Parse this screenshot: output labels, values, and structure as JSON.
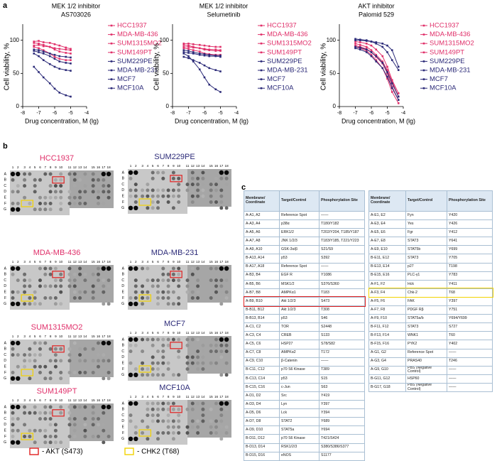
{
  "panel_labels": [
    "a",
    "b",
    "c"
  ],
  "chart_data": [
    {
      "type": "line",
      "title": "MEK 1/2 inhibitor",
      "subtitle": "AS703026",
      "x_label": "Drug concentration, M (lg)",
      "y_label": "Cell viability, %",
      "x": [
        -7.3,
        -7,
        -6.7,
        -6.3,
        -6,
        -5.7,
        -5.3,
        -5
      ],
      "xlim": [
        -8,
        -4
      ],
      "xticks": [
        -8,
        -7,
        -6,
        -5,
        -4
      ],
      "ylim": [
        0,
        120
      ],
      "yticks": [
        0,
        50,
        100
      ],
      "series": [
        {
          "name": "HCC1937",
          "color": "#e0306a",
          "values": [
            98,
            99,
            97,
            96,
            94,
            92,
            89,
            87
          ]
        },
        {
          "name": "MDA-MB-436",
          "color": "#e0306a",
          "values": [
            96,
            95,
            93,
            90,
            86,
            83,
            81,
            80
          ]
        },
        {
          "name": "SUM1315MO2",
          "color": "#e0306a",
          "values": [
            92,
            93,
            91,
            90,
            88,
            87,
            86,
            85
          ]
        },
        {
          "name": "SUM149PT",
          "color": "#e0306a",
          "values": [
            90,
            88,
            85,
            80,
            75,
            72,
            70,
            70
          ]
        },
        {
          "name": "SUM229PE",
          "color": "#2b2a78",
          "values": [
            84,
            82,
            80,
            76,
            72,
            68,
            66,
            65
          ]
        },
        {
          "name": "MDA-MB-231",
          "color": "#2b2a78",
          "values": [
            86,
            85,
            83,
            80,
            78,
            76,
            75,
            74
          ]
        },
        {
          "name": "MCF7",
          "color": "#2b2a78",
          "values": [
            80,
            76,
            70,
            64,
            60,
            57,
            55,
            54
          ]
        },
        {
          "name": "MCF10A",
          "color": "#2b2a78",
          "values": [
            60,
            52,
            44,
            35,
            27,
            21,
            17,
            15
          ]
        }
      ]
    },
    {
      "type": "line",
      "title": "MEK 1/2 inhibitor",
      "subtitle": "Selumetinib",
      "x_label": "Drug concentration, M (lg)",
      "y_label": "Cell viability, %",
      "x": [
        -7.3,
        -7,
        -6.7,
        -6.3,
        -6,
        -5.7,
        -5.3,
        -5
      ],
      "xlim": [
        -8,
        -4
      ],
      "xticks": [
        -8,
        -7,
        -6,
        -5,
        -4
      ],
      "ylim": [
        0,
        120
      ],
      "yticks": [
        0,
        50,
        100
      ],
      "series": [
        {
          "name": "HCC1937",
          "color": "#e0306a",
          "values": [
            95,
            95,
            94,
            93,
            92,
            91,
            90,
            90
          ]
        },
        {
          "name": "MDA-MB-436",
          "color": "#e0306a",
          "values": [
            93,
            92,
            90,
            88,
            86,
            85,
            84,
            84
          ]
        },
        {
          "name": "SUM1315MO2",
          "color": "#e0306a",
          "values": [
            90,
            90,
            89,
            88,
            87,
            86,
            86,
            85
          ]
        },
        {
          "name": "SUM149PT",
          "color": "#e0306a",
          "values": [
            88,
            87,
            85,
            83,
            80,
            79,
            78,
            78
          ]
        },
        {
          "name": "SUM229PE",
          "color": "#2b2a78",
          "values": [
            82,
            81,
            80,
            78,
            77,
            76,
            76,
            75
          ]
        },
        {
          "name": "MDA-MB-231",
          "color": "#2b2a78",
          "values": [
            85,
            84,
            82,
            80,
            79,
            78,
            77,
            77
          ]
        },
        {
          "name": "MCF7",
          "color": "#2b2a78",
          "values": [
            75,
            73,
            70,
            66,
            62,
            58,
            55,
            53
          ]
        },
        {
          "name": "MCF10A",
          "color": "#2b2a78",
          "values": [
            80,
            76,
            68,
            56,
            44,
            33,
            26,
            22
          ]
        }
      ]
    },
    {
      "type": "line",
      "title": "AKT inhibitor",
      "subtitle": "Palomid 529",
      "x_label": "Drug concentration, M (lg)",
      "y_label": "Cell viability, %",
      "x": [
        -7,
        -6.7,
        -6.3,
        -6,
        -5.7,
        -5.3,
        -5,
        -4.7,
        -4.3
      ],
      "xlim": [
        -8,
        -4
      ],
      "xticks": [
        -8,
        -7,
        -6,
        -5,
        -4
      ],
      "ylim": [
        0,
        120
      ],
      "yticks": [
        0,
        50,
        100
      ],
      "series": [
        {
          "name": "HCC1937",
          "color": "#e0306a",
          "values": [
            95,
            93,
            90,
            85,
            78,
            68,
            55,
            38,
            15
          ]
        },
        {
          "name": "MDA-MB-436",
          "color": "#e0306a",
          "values": [
            92,
            90,
            87,
            82,
            75,
            65,
            50,
            30,
            10
          ]
        },
        {
          "name": "SUM1315MO2",
          "color": "#e0306a",
          "values": [
            98,
            97,
            95,
            92,
            86,
            76,
            60,
            40,
            20
          ]
        },
        {
          "name": "SUM149PT",
          "color": "#e0306a",
          "values": [
            90,
            88,
            84,
            78,
            70,
            58,
            42,
            22,
            5
          ]
        },
        {
          "name": "SUM229PE",
          "color": "#2b2a78",
          "values": [
            100,
            100,
            99,
            98,
            97,
            95,
            92,
            85,
            60
          ]
        },
        {
          "name": "MDA-MB-231",
          "color": "#2b2a78",
          "values": [
            102,
            101,
            100,
            98,
            95,
            90,
            82,
            70,
            55
          ]
        },
        {
          "name": "MCF7",
          "color": "#2b2a78",
          "values": [
            88,
            86,
            82,
            76,
            68,
            58,
            45,
            28,
            10
          ]
        },
        {
          "name": "MCF10A",
          "color": "#2b2a78",
          "values": [
            90,
            89,
            86,
            82,
            76,
            66,
            52,
            35,
            15
          ]
        }
      ]
    }
  ],
  "blots": {
    "columns": [
      "1",
      "2",
      "3",
      "4",
      "5",
      "6",
      "7",
      "8",
      "9",
      "10",
      "11",
      "12",
      "13",
      "14",
      "15",
      "16",
      "17",
      "18"
    ],
    "rows": [
      "A",
      "B",
      "C",
      "D",
      "E",
      "F",
      "G"
    ],
    "cells": [
      {
        "name": "HCC1937",
        "color": "#e0306a"
      },
      {
        "name": "SUM229PE",
        "color": "#2b2a78"
      },
      {
        "name": "MDA-MB-436",
        "color": "#e0306a"
      },
      {
        "name": "MDA-MB-231",
        "color": "#2b2a78"
      },
      {
        "name": "SUM1315MO2",
        "color": "#e0306a"
      },
      {
        "name": "MCF7",
        "color": "#2b2a78"
      },
      {
        "name": "SUM149PT",
        "color": "#e0306a"
      },
      {
        "name": "MCF10A",
        "color": "#2b2a78"
      }
    ],
    "legend": [
      {
        "label": "- AKT (S473)",
        "color": "#e02020"
      },
      {
        "label": "- CHK2 (T68)",
        "color": "#f2d200"
      }
    ]
  },
  "tables": [
    {
      "header": [
        "Membrane/ Coordinate",
        "Target/Control",
        "Phosphorylation Site"
      ],
      "highlight_row": 10,
      "highlight_color": "#e02020",
      "rows": [
        [
          "A-A1, A2",
          "Reference Spot",
          "——"
        ],
        [
          "A-A3, A4",
          "p38α",
          "T180/Y182"
        ],
        [
          "A-A5, A6",
          "ERK1/2",
          "T202/Y204, T185/Y187"
        ],
        [
          "A-A7, A8",
          "JNK 1/2/3",
          "T183/Y185, T221/Y223"
        ],
        [
          "A-A9, A10",
          "GSK-3α/β",
          "S21/S9"
        ],
        [
          "B-A13, A14",
          "p53",
          "S392"
        ],
        [
          "B-A17, A18",
          "Reference Spot",
          "——"
        ],
        [
          "A-B3, B4",
          "EGF R",
          "Y1086"
        ],
        [
          "A-B5, B6",
          "MSK1/2",
          "S376/S360"
        ],
        [
          "A-B7, B8",
          "AMPKα1",
          "T183"
        ],
        [
          "A-B9, B10",
          "Akt 1/2/3",
          "S473"
        ],
        [
          "B-B11, B12",
          "Akt 1/2/3",
          "T308"
        ],
        [
          "B-B13, B14",
          "p53",
          "S46"
        ],
        [
          "A-C1, C2",
          "TOR",
          "S2448"
        ],
        [
          "A-C3, C4",
          "CREB",
          "S133"
        ],
        [
          "A-C5, C6",
          "HSP27",
          "S78/S82"
        ],
        [
          "A-C7, C8",
          "AMPKα2",
          "T172"
        ],
        [
          "A-C9, C10",
          "β-Catenin",
          "——"
        ],
        [
          "B-C11, C12",
          "p70 S6 Kinase",
          "T389"
        ],
        [
          "B-C13, C14",
          "p53",
          "S15"
        ],
        [
          "B-C15, C16",
          "c-Jun",
          "S63"
        ],
        [
          "A-D1, D2",
          "Src",
          "Y419"
        ],
        [
          "A-D3, D4",
          "Lyn",
          "Y397"
        ],
        [
          "A-D5, D6",
          "Lck",
          "Y394"
        ],
        [
          "A-D7, D8",
          "STAT2",
          "Y689"
        ],
        [
          "A-D9, D10",
          "STAT5a",
          "Y694"
        ],
        [
          "B-D11, D12",
          "p70 S6 Kinase",
          "T421/S424"
        ],
        [
          "B-D13, D14",
          "RSK1/2/3",
          "S380/S386/S377"
        ],
        [
          "B-D15, D16",
          "eNOS",
          "S1177"
        ]
      ]
    },
    {
      "header": [
        "Membrane/ Coordinate",
        "Target/Control",
        "Phosphorylation Site"
      ],
      "highlight_row": 9,
      "highlight_color": "#f2d200",
      "rows": [
        [
          "A-E1, E2",
          "Fyn",
          "Y420"
        ],
        [
          "A-E3, E4",
          "Yes",
          "Y426"
        ],
        [
          "A-E5, E6",
          "Fgr",
          "Y412"
        ],
        [
          "A-E7, E8",
          "STAT3",
          "Y641"
        ],
        [
          "A-E9, E10",
          "STAT5b",
          "Y699"
        ],
        [
          "B-E11, E12",
          "STAT3",
          "Y705"
        ],
        [
          "B-E13, E14",
          "p27",
          "T198"
        ],
        [
          "B-E15, E16",
          "PLC-γ1",
          "Y783"
        ],
        [
          "A-F1, F2",
          "Hck",
          "Y411"
        ],
        [
          "A-F3, F4",
          "Chk-2",
          "T68"
        ],
        [
          "A-F5, F6",
          "FAK",
          "Y397"
        ],
        [
          "A-F7, F8",
          "PDGF Rβ",
          "Y751"
        ],
        [
          "A-F9, F10",
          "STAT5a/b",
          "Y694/Y699"
        ],
        [
          "B-F11, F12",
          "STAT3",
          "S727"
        ],
        [
          "B-F13, F14",
          "WNK1",
          "T60"
        ],
        [
          "B-F15, F16",
          "PYK2",
          "Y402"
        ],
        [
          "A-G1, G2",
          "Reference Spot",
          "——"
        ],
        [
          "A-G3, G4",
          "PRAS40",
          "T246"
        ],
        [
          "A-G9, G10",
          "PBS (Negative Control)",
          "——"
        ],
        [
          "B-G11, G12",
          "HSP60",
          "——"
        ],
        [
          "B-G17, G18",
          "PBS (Negative Control)",
          "——"
        ]
      ]
    }
  ]
}
